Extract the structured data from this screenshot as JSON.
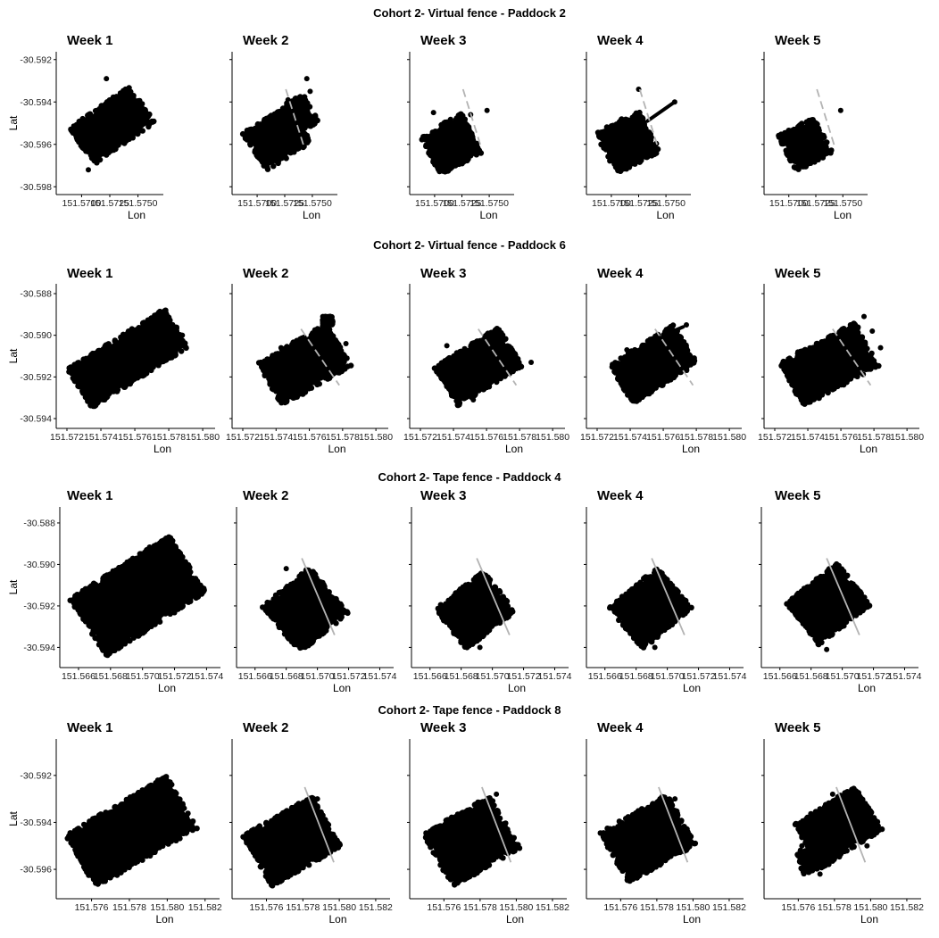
{
  "chart_data": [
    {
      "title": "Cohort 2- Virtual fence - Paddock 2",
      "type": "scatter",
      "xlabel": "Lon",
      "ylabel": "Lat",
      "xlim": [
        151.5687,
        151.5763
      ],
      "ylim": [
        -30.5982,
        -30.5918
      ],
      "xticks": [
        151.57,
        151.5725,
        151.575
      ],
      "xtick_labels": [
        "151.5700",
        "151.5725",
        "151.5750"
      ],
      "yticks": [
        -30.592,
        -30.594,
        -30.596,
        -30.598
      ],
      "ytick_labels": [
        "-30.592",
        "-30.594",
        "-30.596",
        "-30.598"
      ],
      "point_color": "#000000",
      "fence_color": "#b3b3b3",
      "panels": [
        {
          "label": "Week 1",
          "regions": [
            {
              "cx": 151.5727,
              "cy": -30.5951,
              "len": 0.0066,
              "wid": 0.0021,
              "rot": 35
            }
          ],
          "points": [
            [
              151.5722,
              -30.5929
            ],
            [
              151.5746,
              -30.5941
            ],
            [
              151.5706,
              -30.5972
            ],
            [
              151.5699,
              -30.5956
            ]
          ]
        },
        {
          "label": "Week 2",
          "fence": [
            [
              151.5726,
              -30.5934
            ],
            [
              151.5743,
              -30.5962
            ]
          ],
          "regions": [
            {
              "cx": 151.5718,
              "cy": -30.5957,
              "len": 0.0049,
              "wid": 0.0021,
              "rot": 32
            },
            {
              "cx": 151.5741,
              "cy": -30.5945,
              "len": 0.0018,
              "wid": 0.0015,
              "rot": 30
            }
          ],
          "points": [
            [
              151.5745,
              -30.5929
            ],
            [
              151.5748,
              -30.5935
            ],
            [
              151.5739,
              -30.594
            ],
            [
              151.5728,
              -30.5939
            ]
          ]
        },
        {
          "label": "Week 3",
          "fence": [
            [
              151.5726,
              -30.5934
            ],
            [
              151.5743,
              -30.5962
            ]
          ],
          "regions": [
            {
              "cx": 151.5715,
              "cy": -30.596,
              "len": 0.0044,
              "wid": 0.0021,
              "rot": 28
            }
          ],
          "points": [
            [
              151.5748,
              -30.5944
            ],
            [
              151.5699,
              -30.5945
            ],
            [
              151.5733,
              -30.5946
            ]
          ]
        },
        {
          "label": "Week 4",
          "fence": [
            [
              151.5726,
              -30.5934
            ],
            [
              151.5743,
              -30.5962
            ]
          ],
          "regions": [
            {
              "cx": 151.5715,
              "cy": -30.5959,
              "len": 0.0045,
              "wid": 0.0022,
              "rot": 28
            }
          ],
          "lines": [
            [
              [
                151.5733,
                -30.5949
              ],
              [
                151.5758,
                -30.594
              ]
            ]
          ],
          "points": [
            [
              151.5758,
              -30.594
            ],
            [
              151.5725,
              -30.5934
            ]
          ]
        },
        {
          "label": "Week 5",
          "fence": [
            [
              151.5726,
              -30.5934
            ],
            [
              151.5743,
              -30.5962
            ]
          ],
          "regions": [
            {
              "cx": 151.5715,
              "cy": -30.596,
              "len": 0.0038,
              "wid": 0.0019,
              "rot": 28
            }
          ],
          "points": [
            [
              151.5748,
              -30.5944
            ]
          ]
        }
      ]
    },
    {
      "title": "Cohort 2- Virtual fence - Paddock 6",
      "type": "scatter",
      "xlabel": "Lon",
      "ylabel": "Lat",
      "xlim": [
        151.572,
        151.5801
      ],
      "ylim": [
        -30.5943,
        -30.5877
      ],
      "xticks": [
        151.572,
        151.574,
        151.576,
        151.578,
        151.58
      ],
      "xtick_labels": [
        "151.572",
        "151.574",
        "151.576",
        "151.578",
        "151.580"
      ],
      "yticks": [
        -30.588,
        -30.59,
        -30.592,
        -30.594
      ],
      "ytick_labels": [
        "-30.588",
        "-30.590",
        "-30.592",
        "-30.594"
      ],
      "point_color": "#000000",
      "fence_color": "#b3b3b3",
      "panels": [
        {
          "label": "Week 1",
          "regions": [
            {
              "cx": 151.5756,
              "cy": -30.5911,
              "len": 0.0068,
              "wid": 0.0022,
              "rot": 32
            }
          ],
          "points": [
            [
              151.5774,
              -30.5891
            ],
            [
              151.5788,
              -30.59
            ],
            [
              151.5736,
              -30.5932
            ],
            [
              151.5732,
              -30.5915
            ]
          ]
        },
        {
          "label": "Week 2",
          "fence": [
            [
              151.5755,
              -30.5897
            ],
            [
              151.5778,
              -30.5924
            ]
          ],
          "regions": [
            {
              "cx": 151.5757,
              "cy": -30.5914,
              "len": 0.0048,
              "wid": 0.0024,
              "rot": 30
            },
            {
              "cx": 151.5771,
              "cy": -30.5893,
              "len": 0.0006,
              "wid": 0.0004,
              "rot": 0
            }
          ],
          "points": [
            [
              151.5743,
              -30.5906
            ],
            [
              151.5782,
              -30.5904
            ],
            [
              151.5747,
              -30.5929
            ],
            [
              151.5768,
              -30.5898
            ]
          ]
        },
        {
          "label": "Week 3",
          "fence": [
            [
              151.5755,
              -30.5897
            ],
            [
              151.5778,
              -30.5924
            ]
          ],
          "regions": [
            {
              "cx": 151.5755,
              "cy": -30.5915,
              "len": 0.0046,
              "wid": 0.0022,
              "rot": 32
            }
          ],
          "points": [
            [
              151.5787,
              -30.5913
            ],
            [
              151.5736,
              -30.5905
            ],
            [
              151.5752,
              -30.5931
            ]
          ]
        },
        {
          "label": "Week 4",
          "fence": [
            [
              151.5755,
              -30.5897
            ],
            [
              151.5778,
              -30.5924
            ]
          ],
          "regions": [
            {
              "cx": 151.5754,
              "cy": -30.5914,
              "len": 0.0046,
              "wid": 0.0022,
              "rot": 32
            }
          ],
          "lines": [
            [
              [
                151.5763,
                -30.5899
              ],
              [
                151.5772,
                -30.5896
              ]
            ]
          ],
          "points": [
            [
              151.5738,
              -30.5907
            ],
            [
              151.5774,
              -30.5895
            ]
          ]
        },
        {
          "label": "Week 5",
          "fence": [
            [
              151.5755,
              -30.5897
            ],
            [
              151.5778,
              -30.5924
            ]
          ],
          "regions": [
            {
              "cx": 151.5753,
              "cy": -30.5914,
              "len": 0.0052,
              "wid": 0.0024,
              "rot": 28
            }
          ],
          "points": [
            [
              151.5774,
              -30.5891
            ],
            [
              151.577,
              -30.5896
            ],
            [
              151.5779,
              -30.5898
            ],
            [
              151.5784,
              -30.5906
            ],
            [
              151.5738,
              -30.5925
            ],
            [
              151.5734,
              -30.5908
            ]
          ]
        }
      ]
    },
    {
      "title": "Cohort 2- Tape fence - Paddock 4",
      "type": "scatter",
      "xlabel": "Lon",
      "ylabel": "Lat",
      "xlim": [
        151.5655,
        151.5742
      ],
      "ylim": [
        -30.5948,
        -30.5874
      ],
      "xticks": [
        151.566,
        151.568,
        151.57,
        151.572,
        151.574
      ],
      "xtick_labels": [
        "151.566",
        "151.568",
        "151.570",
        "151.572",
        "151.574"
      ],
      "yticks": [
        -30.588,
        -30.59,
        -30.592,
        -30.594
      ],
      "ytick_labels": [
        "-30.588",
        "-30.590",
        "-30.592",
        "-30.594"
      ],
      "point_color": "#000000",
      "fence_color": "#b3b3b3",
      "panels": [
        {
          "label": "Week 1",
          "regions": [
            {
              "cx": 151.5697,
              "cy": -30.5915,
              "len": 0.0074,
              "wid": 0.0033,
              "rot": 33
            }
          ],
          "points": [
            [
              151.5715,
              -30.5892
            ],
            [
              151.573,
              -30.5907
            ],
            [
              151.5679,
              -30.594
            ],
            [
              151.5663,
              -30.592
            ]
          ]
        },
        {
          "label": "Week 2",
          "fence": [
            [
              151.569,
              -30.5897
            ],
            [
              151.5711,
              -30.5934
            ]
          ],
          "regions": [
            {
              "cx": 151.5692,
              "cy": -30.5922,
              "len": 0.004,
              "wid": 0.0029,
              "rot": 40
            }
          ],
          "points": [
            [
              151.568,
              -30.5902
            ],
            [
              151.569,
              -30.594
            ],
            [
              151.5707,
              -30.5927
            ]
          ]
        },
        {
          "label": "Week 3",
          "fence": [
            [
              151.569,
              -30.5897
            ],
            [
              151.5711,
              -30.5934
            ]
          ],
          "regions": [
            {
              "cx": 151.5689,
              "cy": -30.5922,
              "len": 0.004,
              "wid": 0.0025,
              "rot": 38
            }
          ],
          "points": [
            [
              151.5677,
              -30.5921
            ],
            [
              151.5705,
              -30.5919
            ],
            [
              151.5692,
              -30.594
            ]
          ]
        },
        {
          "label": "Week 4",
          "fence": [
            [
              151.569,
              -30.5897
            ],
            [
              151.5711,
              -30.5934
            ]
          ],
          "regions": [
            {
              "cx": 151.5689,
              "cy": -30.5921,
              "len": 0.0041,
              "wid": 0.0026,
              "rot": 40
            }
          ],
          "points": [
            [
              151.5676,
              -30.5914
            ],
            [
              151.5703,
              -30.5921
            ],
            [
              151.5692,
              -30.594
            ]
          ]
        },
        {
          "label": "Week 5",
          "fence": [
            [
              151.569,
              -30.5897
            ],
            [
              151.5711,
              -30.5934
            ]
          ],
          "regions": [
            {
              "cx": 151.5691,
              "cy": -30.5919,
              "len": 0.0042,
              "wid": 0.0026,
              "rot": 38
            }
          ],
          "points": [
            [
              151.5675,
              -30.5916
            ],
            [
              151.5706,
              -30.5917
            ],
            [
              151.569,
              -30.5941
            ]
          ]
        }
      ]
    },
    {
      "title": "Cohort 2- Tape fence - Paddock 8",
      "type": "scatter",
      "xlabel": "Lon",
      "ylabel": "Lat",
      "xlim": [
        151.5747,
        151.5822
      ],
      "ylim": [
        -30.5971,
        -30.5906
      ],
      "xticks": [
        151.576,
        151.578,
        151.58,
        151.582
      ],
      "xtick_labels": [
        "151.576",
        "151.578",
        "151.580",
        "151.582"
      ],
      "yticks": [
        -30.592,
        -30.594,
        -30.596
      ],
      "ytick_labels": [
        "-30.592",
        "-30.594",
        "-30.596"
      ],
      "point_color": "#000000",
      "fence_color": "#b3b3b3",
      "panels": [
        {
          "label": "Week 1",
          "regions": [
            {
              "cx": 151.5781,
              "cy": -30.5944,
              "len": 0.0062,
              "wid": 0.0026,
              "rot": 30
            }
          ],
          "points": [
            [
              151.5795,
              -30.5922
            ],
            [
              151.5809,
              -30.5934
            ],
            [
              151.5768,
              -30.596
            ],
            [
              151.5758,
              -30.5948
            ]
          ]
        },
        {
          "label": "Week 2",
          "fence": [
            [
              151.5781,
              -30.5925
            ],
            [
              151.5797,
              -30.5957
            ]
          ],
          "regions": [
            {
              "cx": 151.5774,
              "cy": -30.5948,
              "len": 0.0044,
              "wid": 0.0025,
              "rot": 30
            }
          ],
          "points": [
            [
              151.5788,
              -30.593
            ],
            [
              151.5762,
              -30.5958
            ],
            [
              151.5795,
              -30.5952
            ]
          ]
        },
        {
          "label": "Week 3",
          "fence": [
            [
              151.5781,
              -30.5925
            ],
            [
              151.5797,
              -30.5957
            ]
          ],
          "regions": [
            {
              "cx": 151.5775,
              "cy": -30.5948,
              "len": 0.0043,
              "wid": 0.0026,
              "rot": 30
            }
          ],
          "points": [
            [
              151.5789,
              -30.5928
            ],
            [
              151.5763,
              -30.596
            ]
          ]
        },
        {
          "label": "Week 4",
          "fence": [
            [
              151.5781,
              -30.5925
            ],
            [
              151.5797,
              -30.5957
            ]
          ],
          "regions": [
            {
              "cx": 151.5775,
              "cy": -30.5947,
              "len": 0.0043,
              "wid": 0.0025,
              "rot": 30
            }
          ],
          "points": [
            [
              151.579,
              -30.593
            ],
            [
              151.5765,
              -30.5958
            ]
          ]
        },
        {
          "label": "Week 5",
          "fence": [
            [
              151.5781,
              -30.5925
            ],
            [
              151.5797,
              -30.5957
            ]
          ],
          "regions": [
            {
              "cx": 151.5782,
              "cy": -30.5942,
              "len": 0.004,
              "wid": 0.0022,
              "rot": 32
            },
            {
              "cx": 151.5769,
              "cy": -30.5955,
              "len": 0.0018,
              "wid": 0.001,
              "rot": 20
            }
          ],
          "points": [
            [
              151.5762,
              -30.595
            ],
            [
              151.5772,
              -30.5962
            ],
            [
              151.5779,
              -30.5928
            ],
            [
              151.5798,
              -30.595
            ]
          ]
        }
      ]
    }
  ]
}
